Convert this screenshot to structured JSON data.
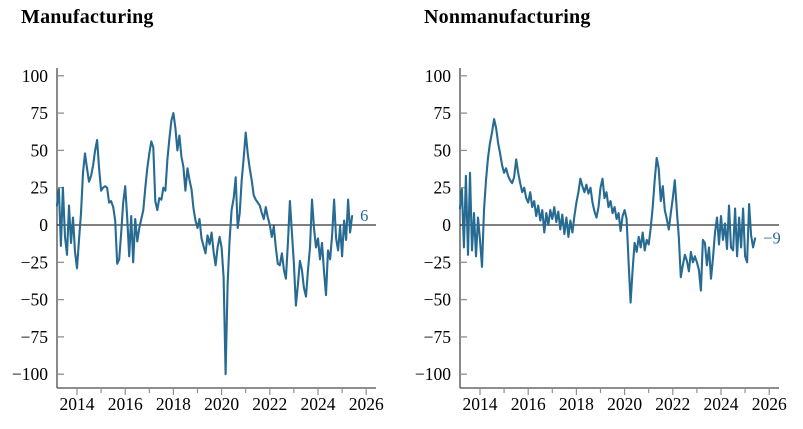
{
  "page": {
    "background_color": "#ffffff",
    "text_color": "#000000"
  },
  "chart_data": [
    {
      "type": "line",
      "title": "Manufacturing",
      "frequency": "monthly",
      "start": "2013-03",
      "end": "2025-06",
      "end_label": "6",
      "latest_value": 6,
      "line_color": "#276b93",
      "axis_color": "#4a4a4a",
      "tick_color": "#8f8f8f",
      "zero_line_color": "#000000",
      "grid": false,
      "legend": null,
      "ylim": [
        -100,
        100
      ],
      "yticks": [
        100,
        75,
        50,
        25,
        0,
        -25,
        -50,
        -75,
        -100
      ],
      "ytick_labels": [
        "100",
        "75",
        "50",
        "25",
        "0",
        "−25",
        "−50",
        "−75",
        "−100"
      ],
      "xlim": [
        2013.15,
        2026.4
      ],
      "xtick_years_labeled": [
        2014,
        2016,
        2018,
        2020,
        2022,
        2024,
        2026
      ],
      "xtick_years_minor": [
        2015,
        2017,
        2019,
        2021,
        2023,
        2025
      ],
      "zero_line": true,
      "series": [
        {
          "name": "Manufacturing",
          "values": [
            13,
            24,
            -14,
            25,
            -8,
            -20,
            13,
            -12,
            5,
            -18,
            -29,
            -10,
            8,
            35,
            48,
            38,
            29,
            33,
            40,
            50,
            57,
            38,
            23,
            25,
            26,
            25,
            15,
            16,
            12,
            3,
            -26,
            -23,
            -5,
            15,
            26,
            5,
            -21,
            6,
            -25,
            4,
            -11,
            -2,
            4,
            10,
            25,
            38,
            48,
            56,
            52,
            16,
            10,
            18,
            17,
            25,
            23,
            44,
            58,
            70,
            75,
            65,
            50,
            60,
            46,
            39,
            23,
            38,
            30,
            24,
            11,
            3,
            -2,
            4,
            -9,
            -14,
            -19,
            -7,
            -13,
            -5,
            -18,
            -27,
            -15,
            -8,
            -15,
            -35,
            -100,
            -40,
            -10,
            10,
            18,
            32,
            -2,
            8,
            30,
            45,
            62,
            48,
            38,
            30,
            20,
            17,
            15,
            13,
            8,
            4,
            12,
            5,
            0,
            -8,
            -1,
            -15,
            -26,
            -27,
            -19,
            -30,
            -36,
            -12,
            16,
            -5,
            -26,
            -54,
            -40,
            -24,
            -30,
            -42,
            -48,
            -30,
            -15,
            17,
            -2,
            -15,
            -9,
            -23,
            -12,
            -31,
            -47,
            -17,
            -23,
            -7,
            17,
            -9,
            -17,
            -1,
            -21,
            3,
            -10,
            17,
            -5,
            6
          ]
        }
      ]
    },
    {
      "type": "line",
      "title": "Nonmanufacturing",
      "frequency": "monthly",
      "start": "2013-03",
      "end": "2025-06",
      "end_label": "−9",
      "latest_value": -9,
      "line_color": "#276b93",
      "axis_color": "#4a4a4a",
      "tick_color": "#8f8f8f",
      "zero_line_color": "#000000",
      "grid": false,
      "legend": null,
      "ylim": [
        -100,
        100
      ],
      "yticks": [
        100,
        75,
        50,
        25,
        0,
        -25,
        -50,
        -75,
        -100
      ],
      "ytick_labels": [
        "100",
        "75",
        "50",
        "25",
        "0",
        "−25",
        "−50",
        "−75",
        "−100"
      ],
      "xlim": [
        2013.15,
        2026.4
      ],
      "xtick_years_labeled": [
        2014,
        2016,
        2018,
        2020,
        2022,
        2024,
        2026
      ],
      "xtick_years_minor": [
        2015,
        2017,
        2019,
        2021,
        2023,
        2025
      ],
      "zero_line": true,
      "series": [
        {
          "name": "Nonmanufacturing",
          "values": [
            11,
            24,
            -15,
            33,
            -20,
            35,
            -17,
            8,
            -21,
            5,
            -10,
            -28,
            10,
            30,
            45,
            55,
            62,
            71,
            65,
            55,
            48,
            40,
            35,
            38,
            33,
            30,
            28,
            32,
            44,
            35,
            28,
            22,
            25,
            18,
            15,
            22,
            12,
            16,
            6,
            13,
            3,
            10,
            -5,
            8,
            0,
            10,
            4,
            12,
            2,
            9,
            -3,
            7,
            -6,
            5,
            -8,
            3,
            -5,
            6,
            15,
            22,
            31,
            26,
            22,
            27,
            21,
            25,
            15,
            9,
            5,
            12,
            25,
            31,
            18,
            22,
            12,
            16,
            8,
            12,
            4,
            8,
            -4,
            6,
            10,
            4,
            -25,
            -52,
            -30,
            -12,
            -18,
            -8,
            -15,
            -5,
            -17,
            -10,
            -13,
            -2,
            12,
            30,
            45,
            38,
            16,
            26,
            10,
            4,
            -3,
            8,
            18,
            30,
            10,
            -8,
            -35,
            -27,
            -20,
            -24,
            -31,
            -18,
            -25,
            -21,
            -25,
            -30,
            -44,
            -10,
            -12,
            -27,
            -15,
            -36,
            -22,
            -5,
            5,
            -13,
            6,
            -10,
            1,
            -16,
            13,
            -15,
            -17,
            11,
            -21,
            5,
            -15,
            11,
            -21,
            -25,
            14,
            -7,
            -15,
            -9
          ]
        }
      ]
    }
  ]
}
